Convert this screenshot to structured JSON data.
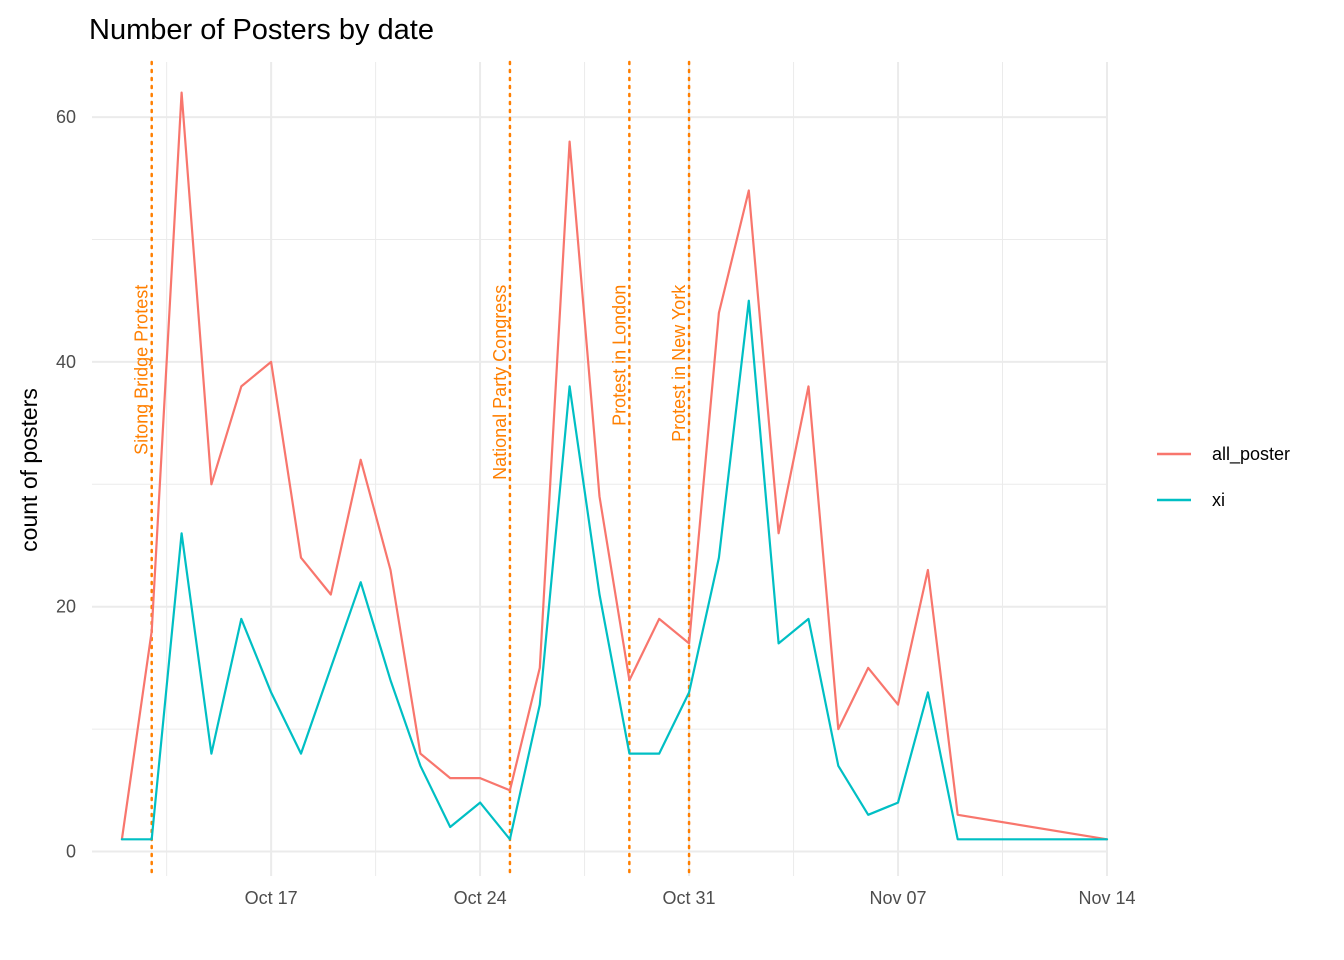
{
  "chart_data": {
    "type": "line",
    "title": "Number of Posters by date",
    "xlabel": "",
    "ylabel": "count of posters",
    "x_type": "date",
    "xlim": [
      "2022-10-11",
      "2022-11-14"
    ],
    "ylim": [
      -2,
      64.5
    ],
    "x_ticks": [
      {
        "date": "2022-10-17",
        "label": "Oct 17"
      },
      {
        "date": "2022-10-24",
        "label": "Oct 24"
      },
      {
        "date": "2022-10-31",
        "label": "Oct 31"
      },
      {
        "date": "2022-11-07",
        "label": "Nov 07"
      },
      {
        "date": "2022-11-14",
        "label": "Nov 14"
      }
    ],
    "y_ticks": [
      0,
      20,
      40,
      60
    ],
    "grid": true,
    "legend_position": "right",
    "dates": [
      "2022-10-12",
      "2022-10-13",
      "2022-10-14",
      "2022-10-15",
      "2022-10-16",
      "2022-10-17",
      "2022-10-18",
      "2022-10-19",
      "2022-10-20",
      "2022-10-21",
      "2022-10-22",
      "2022-10-23",
      "2022-10-24",
      "2022-10-25",
      "2022-10-26",
      "2022-10-27",
      "2022-10-28",
      "2022-10-29",
      "2022-10-30",
      "2022-10-31",
      "2022-11-01",
      "2022-11-02",
      "2022-11-03",
      "2022-11-04",
      "2022-11-05",
      "2022-11-06",
      "2022-11-07",
      "2022-11-08",
      "2022-11-09",
      "2022-11-14"
    ],
    "series": [
      {
        "name": "all_poster",
        "color": "#f8766d",
        "values": [
          1,
          18,
          62,
          30,
          38,
          40,
          24,
          21,
          32,
          23,
          8,
          6,
          6,
          5,
          15,
          58,
          29,
          14,
          19,
          17,
          44,
          54,
          26,
          38,
          10,
          15,
          12,
          23,
          3,
          1
        ]
      },
      {
        "name": "xi",
        "color": "#00bfc4",
        "values": [
          1,
          1,
          26,
          8,
          19,
          13,
          8,
          15,
          22,
          14,
          7,
          2,
          4,
          1,
          12,
          38,
          21,
          8,
          8,
          13,
          24,
          45,
          17,
          19,
          7,
          3,
          4,
          13,
          1,
          1
        ]
      }
    ],
    "events": [
      {
        "date": "2022-10-13",
        "label": "Sitong Bridge Protest"
      },
      {
        "date": "2022-10-25",
        "label": "National Party Congress"
      },
      {
        "date": "2022-10-29",
        "label": "Protest in London"
      },
      {
        "date": "2022-10-31",
        "label": "Protest in New York"
      }
    ],
    "colors": {
      "event": "#ff7f00",
      "grid": "#ebebeb",
      "tick_text": "#4d4d4d"
    }
  }
}
